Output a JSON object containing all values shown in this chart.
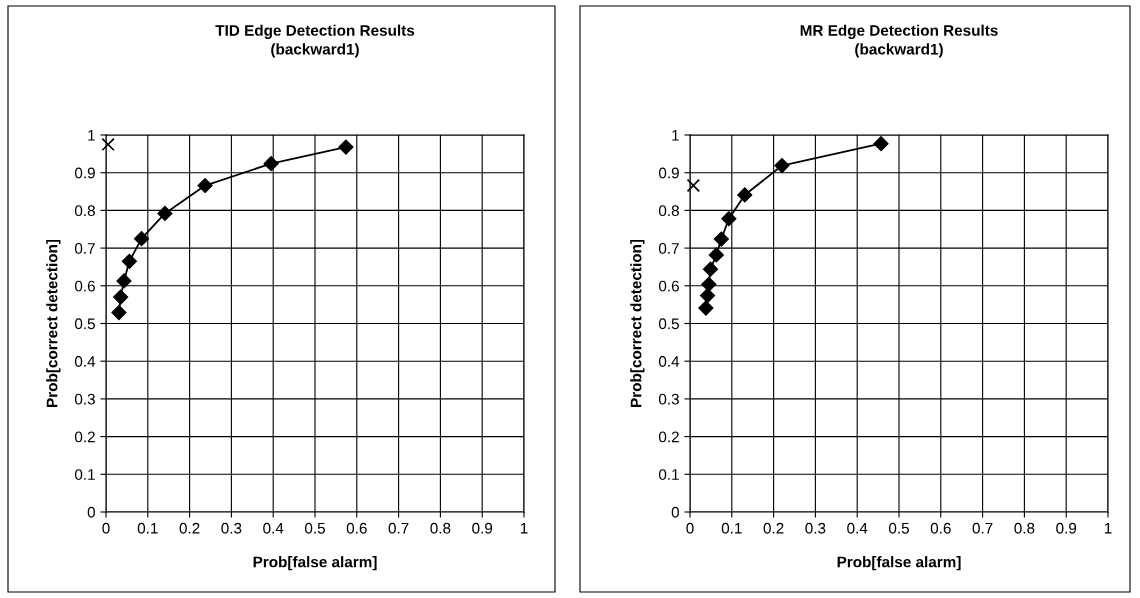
{
  "chart_data": [
    {
      "type": "line",
      "title": "TID Edge Detection Results\n(backward1)",
      "xlabel": "Prob[false alarm]",
      "ylabel": "Prob[correct detection]",
      "xlim": [
        0,
        1
      ],
      "ylim": [
        0,
        1
      ],
      "xticks": [
        0,
        0.1,
        0.2,
        0.3,
        0.4,
        0.5,
        0.6,
        0.7,
        0.8,
        0.9,
        1
      ],
      "yticks": [
        0,
        0.1,
        0.2,
        0.3,
        0.4,
        0.5,
        0.6,
        0.7,
        0.8,
        0.9,
        1
      ],
      "grid": true,
      "marker": "diamond",
      "line_style": "solid",
      "series": [
        {
          "color": "#000000",
          "x": [
            0.031,
            0.035,
            0.043,
            0.056,
            0.085,
            0.141,
            0.237,
            0.395,
            0.574
          ],
          "values": [
            0.529,
            0.57,
            0.613,
            0.665,
            0.725,
            0.792,
            0.866,
            0.924,
            0.968
          ]
        },
        {
          "type": "scatter",
          "marker": "cross",
          "color": "#000000",
          "x": [
            0.005
          ],
          "values": [
            0.975
          ]
        }
      ]
    },
    {
      "type": "line",
      "title": "MR Edge Detection Results\n(backward1)",
      "xlabel": "Prob[false alarm]",
      "ylabel": "Prob[correct detection]",
      "xlim": [
        0,
        1
      ],
      "ylim": [
        0,
        1
      ],
      "xticks": [
        0,
        0.1,
        0.2,
        0.3,
        0.4,
        0.5,
        0.6,
        0.7,
        0.8,
        0.9,
        1
      ],
      "yticks": [
        0,
        0.1,
        0.2,
        0.3,
        0.4,
        0.5,
        0.6,
        0.7,
        0.8,
        0.9,
        1
      ],
      "grid": true,
      "marker": "diamond",
      "line_style": "solid",
      "series": [
        {
          "color": "#000000",
          "x": [
            0.038,
            0.042,
            0.045,
            0.049,
            0.063,
            0.075,
            0.093,
            0.131,
            0.22,
            0.457
          ],
          "values": [
            0.541,
            0.574,
            0.604,
            0.644,
            0.682,
            0.724,
            0.778,
            0.841,
            0.919,
            0.977
          ]
        },
        {
          "type": "scatter",
          "marker": "cross",
          "color": "#000000",
          "x": [
            0.008
          ],
          "values": [
            0.866
          ]
        }
      ]
    }
  ]
}
